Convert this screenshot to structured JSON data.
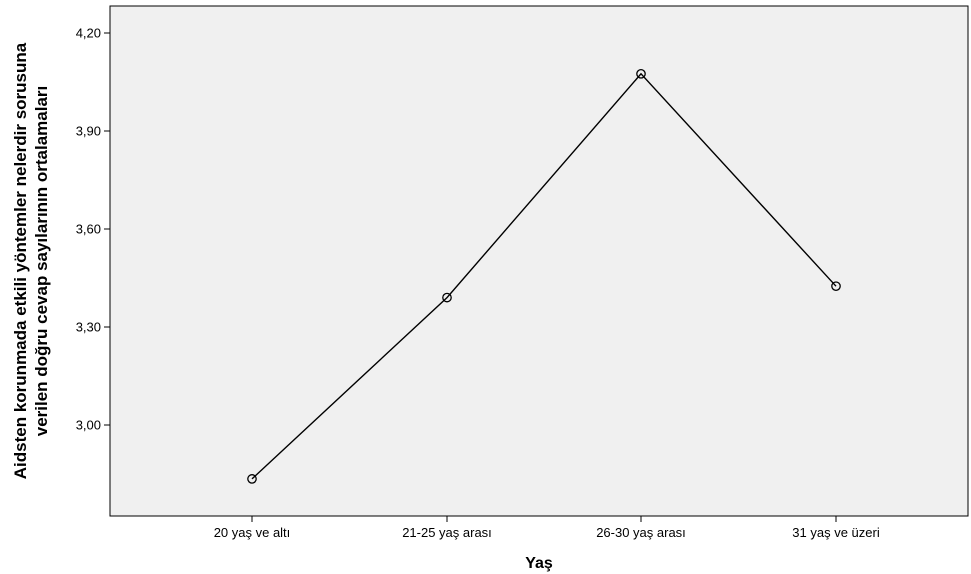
{
  "chart_data": {
    "type": "line",
    "title": "",
    "xlabel": "Yaş",
    "ylabel_lines": [
      "Aidsten korunmada etkili yöntemler nelerdir sorusuna",
      "verilen doğru cevap sayılarının ortalamaları"
    ],
    "categories": [
      "20 yaş ve altı",
      "21-25 yaş arası",
      "26-30 yaş arası",
      "31 yaş ve üzeri"
    ],
    "series": [
      {
        "values": [
          2.835,
          3.39,
          4.075,
          3.425
        ]
      }
    ],
    "ylim": [
      2.74,
      4.28
    ],
    "yticks": [
      3.0,
      3.3,
      3.6,
      3.9,
      4.2
    ],
    "ytick_labels": [
      "3,00",
      "3,30",
      "3,60",
      "3,90",
      "4,20"
    ],
    "grid": false,
    "plot_background": "#f0f0f0",
    "line_color": "#000000",
    "marker": "open-circle"
  }
}
